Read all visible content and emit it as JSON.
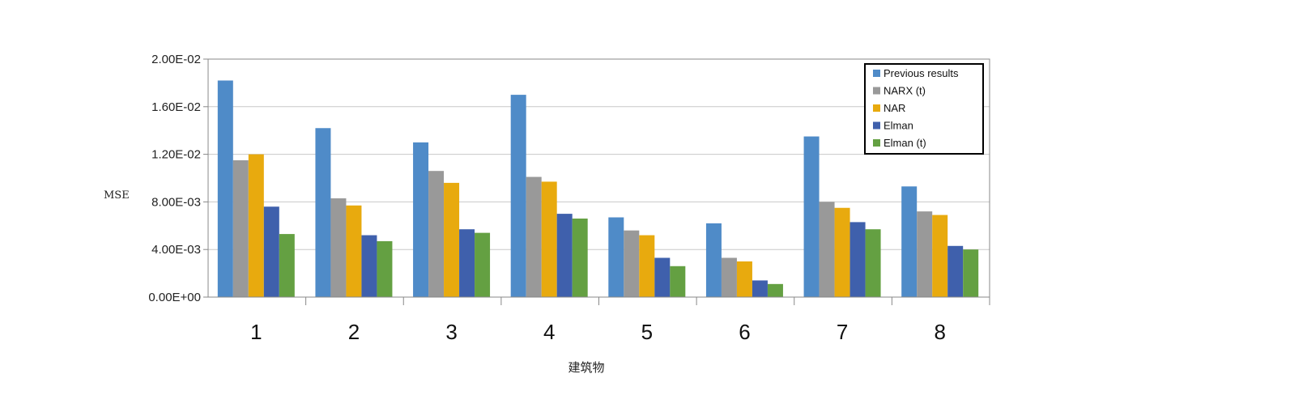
{
  "chart_data": {
    "type": "bar",
    "title": "",
    "xlabel": "建筑物",
    "ylabel": "MSE",
    "categories": [
      "1",
      "2",
      "3",
      "4",
      "5",
      "6",
      "7",
      "8"
    ],
    "y_ticks": [
      "0.00E+00",
      "4.00E-03",
      "8.00E-03",
      "1.20E-02",
      "1.60E-02",
      "2.00E-02"
    ],
    "ylim": [
      0,
      0.02
    ],
    "grid": true,
    "legend_position": "top-right",
    "series": [
      {
        "name": "Previous results",
        "color": "#4f8bc8",
        "values": [
          0.0182,
          0.0142,
          0.013,
          0.017,
          0.0067,
          0.0062,
          0.0135,
          0.0093
        ]
      },
      {
        "name": "NARX (t)",
        "color": "#999999",
        "values": [
          0.0115,
          0.0083,
          0.0106,
          0.0101,
          0.0056,
          0.0033,
          0.008,
          0.0072
        ]
      },
      {
        "name": "NAR",
        "color": "#e8aa0e",
        "values": [
          0.012,
          0.0077,
          0.0096,
          0.0097,
          0.0052,
          0.003,
          0.0075,
          0.0069
        ]
      },
      {
        "name": "Elman",
        "color": "#3f60ac",
        "values": [
          0.0076,
          0.0052,
          0.0057,
          0.007,
          0.0033,
          0.0014,
          0.0063,
          0.0043
        ]
      },
      {
        "name": "Elman (t)",
        "color": "#64a042",
        "values": [
          0.0053,
          0.0047,
          0.0054,
          0.0066,
          0.0026,
          0.0011,
          0.0057,
          0.004
        ]
      }
    ]
  }
}
